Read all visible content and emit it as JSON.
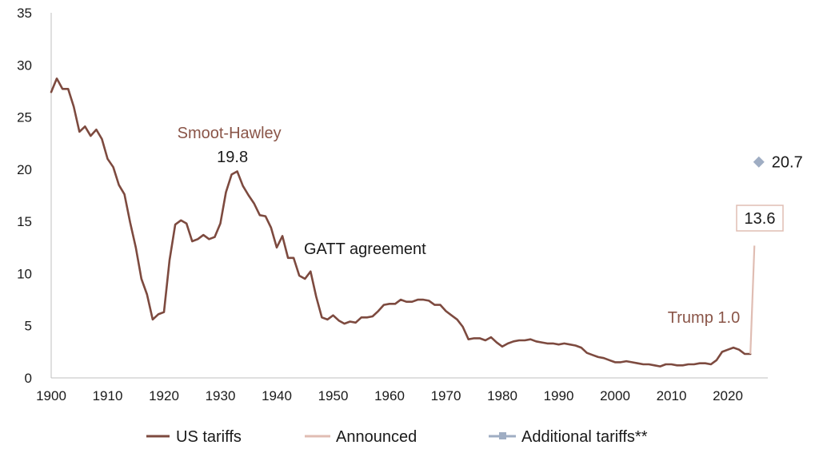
{
  "chart_data": {
    "type": "line",
    "xlim": [
      1900,
      2028
    ],
    "ylim": [
      0,
      35
    ],
    "x_ticks": [
      1900,
      1910,
      1920,
      1930,
      1940,
      1950,
      1960,
      1970,
      1980,
      1990,
      2000,
      2010,
      2020
    ],
    "y_ticks": [
      0,
      5,
      10,
      15,
      20,
      25,
      30,
      35
    ],
    "grid": false,
    "legend_position": "bottom",
    "series": [
      {
        "name": "US tariffs",
        "color": "#7d4a3f",
        "x": [
          1900,
          1901,
          1902,
          1903,
          1904,
          1905,
          1906,
          1907,
          1908,
          1909,
          1910,
          1911,
          1912,
          1913,
          1914,
          1915,
          1916,
          1917,
          1918,
          1919,
          1920,
          1921,
          1922,
          1923,
          1924,
          1925,
          1926,
          1927,
          1928,
          1929,
          1930,
          1931,
          1932,
          1933,
          1934,
          1935,
          1936,
          1937,
          1938,
          1939,
          1940,
          1941,
          1942,
          1943,
          1944,
          1945,
          1946,
          1947,
          1948,
          1949,
          1950,
          1951,
          1952,
          1953,
          1954,
          1955,
          1956,
          1957,
          1958,
          1959,
          1960,
          1961,
          1962,
          1963,
          1964,
          1965,
          1966,
          1967,
          1968,
          1969,
          1970,
          1971,
          1972,
          1973,
          1974,
          1975,
          1976,
          1977,
          1978,
          1979,
          1980,
          1981,
          1982,
          1983,
          1984,
          1985,
          1986,
          1987,
          1988,
          1989,
          1990,
          1991,
          1992,
          1993,
          1994,
          1995,
          1996,
          1997,
          1998,
          1999,
          2000,
          2001,
          2002,
          2003,
          2004,
          2005,
          2006,
          2007,
          2008,
          2009,
          2010,
          2011,
          2012,
          2013,
          2014,
          2015,
          2016,
          2017,
          2018,
          2019,
          2020,
          2021,
          2022,
          2023,
          2024
        ],
        "values": [
          27.4,
          28.7,
          27.7,
          27.7,
          26.0,
          23.6,
          24.1,
          23.2,
          23.8,
          22.9,
          21.0,
          20.2,
          18.5,
          17.6,
          14.9,
          12.5,
          9.5,
          8.0,
          5.6,
          6.1,
          6.3,
          11.3,
          14.7,
          15.1,
          14.8,
          13.1,
          13.3,
          13.7,
          13.3,
          13.5,
          14.8,
          17.8,
          19.5,
          19.8,
          18.4,
          17.5,
          16.7,
          15.6,
          15.5,
          14.4,
          12.5,
          13.6,
          11.5,
          11.5,
          9.8,
          9.5,
          10.2,
          7.8,
          5.8,
          5.6,
          6.0,
          5.5,
          5.2,
          5.4,
          5.3,
          5.8,
          5.8,
          5.9,
          6.4,
          7.0,
          7.1,
          7.1,
          7.5,
          7.3,
          7.3,
          7.5,
          7.5,
          7.4,
          7.0,
          7.0,
          6.4,
          6.0,
          5.6,
          4.9,
          3.7,
          3.8,
          3.8,
          3.6,
          3.9,
          3.4,
          3.0,
          3.3,
          3.5,
          3.6,
          3.6,
          3.7,
          3.5,
          3.4,
          3.3,
          3.3,
          3.2,
          3.3,
          3.2,
          3.1,
          2.9,
          2.4,
          2.2,
          2.0,
          1.9,
          1.7,
          1.5,
          1.5,
          1.6,
          1.5,
          1.4,
          1.3,
          1.3,
          1.2,
          1.1,
          1.3,
          1.3,
          1.2,
          1.2,
          1.3,
          1.3,
          1.4,
          1.4,
          1.3,
          1.7,
          2.5,
          2.7,
          2.9,
          2.7,
          2.3,
          2.3
        ]
      },
      {
        "name": "Announced",
        "color": "#e0bdb3",
        "x": [
          2024,
          2025
        ],
        "values": [
          2.3,
          13.6
        ]
      },
      {
        "name": "Additional tariffs**",
        "color": "#9fadc3",
        "x": [
          2025.5
        ],
        "values": [
          20.7
        ]
      }
    ],
    "annotations": {
      "smoot_title": "Smoot-Hawley",
      "smoot_value": "19.8",
      "gatt": "GATT agreement",
      "trump": "Trump 1.0",
      "announced_value": "13.6",
      "additional_value": "20.7"
    }
  }
}
